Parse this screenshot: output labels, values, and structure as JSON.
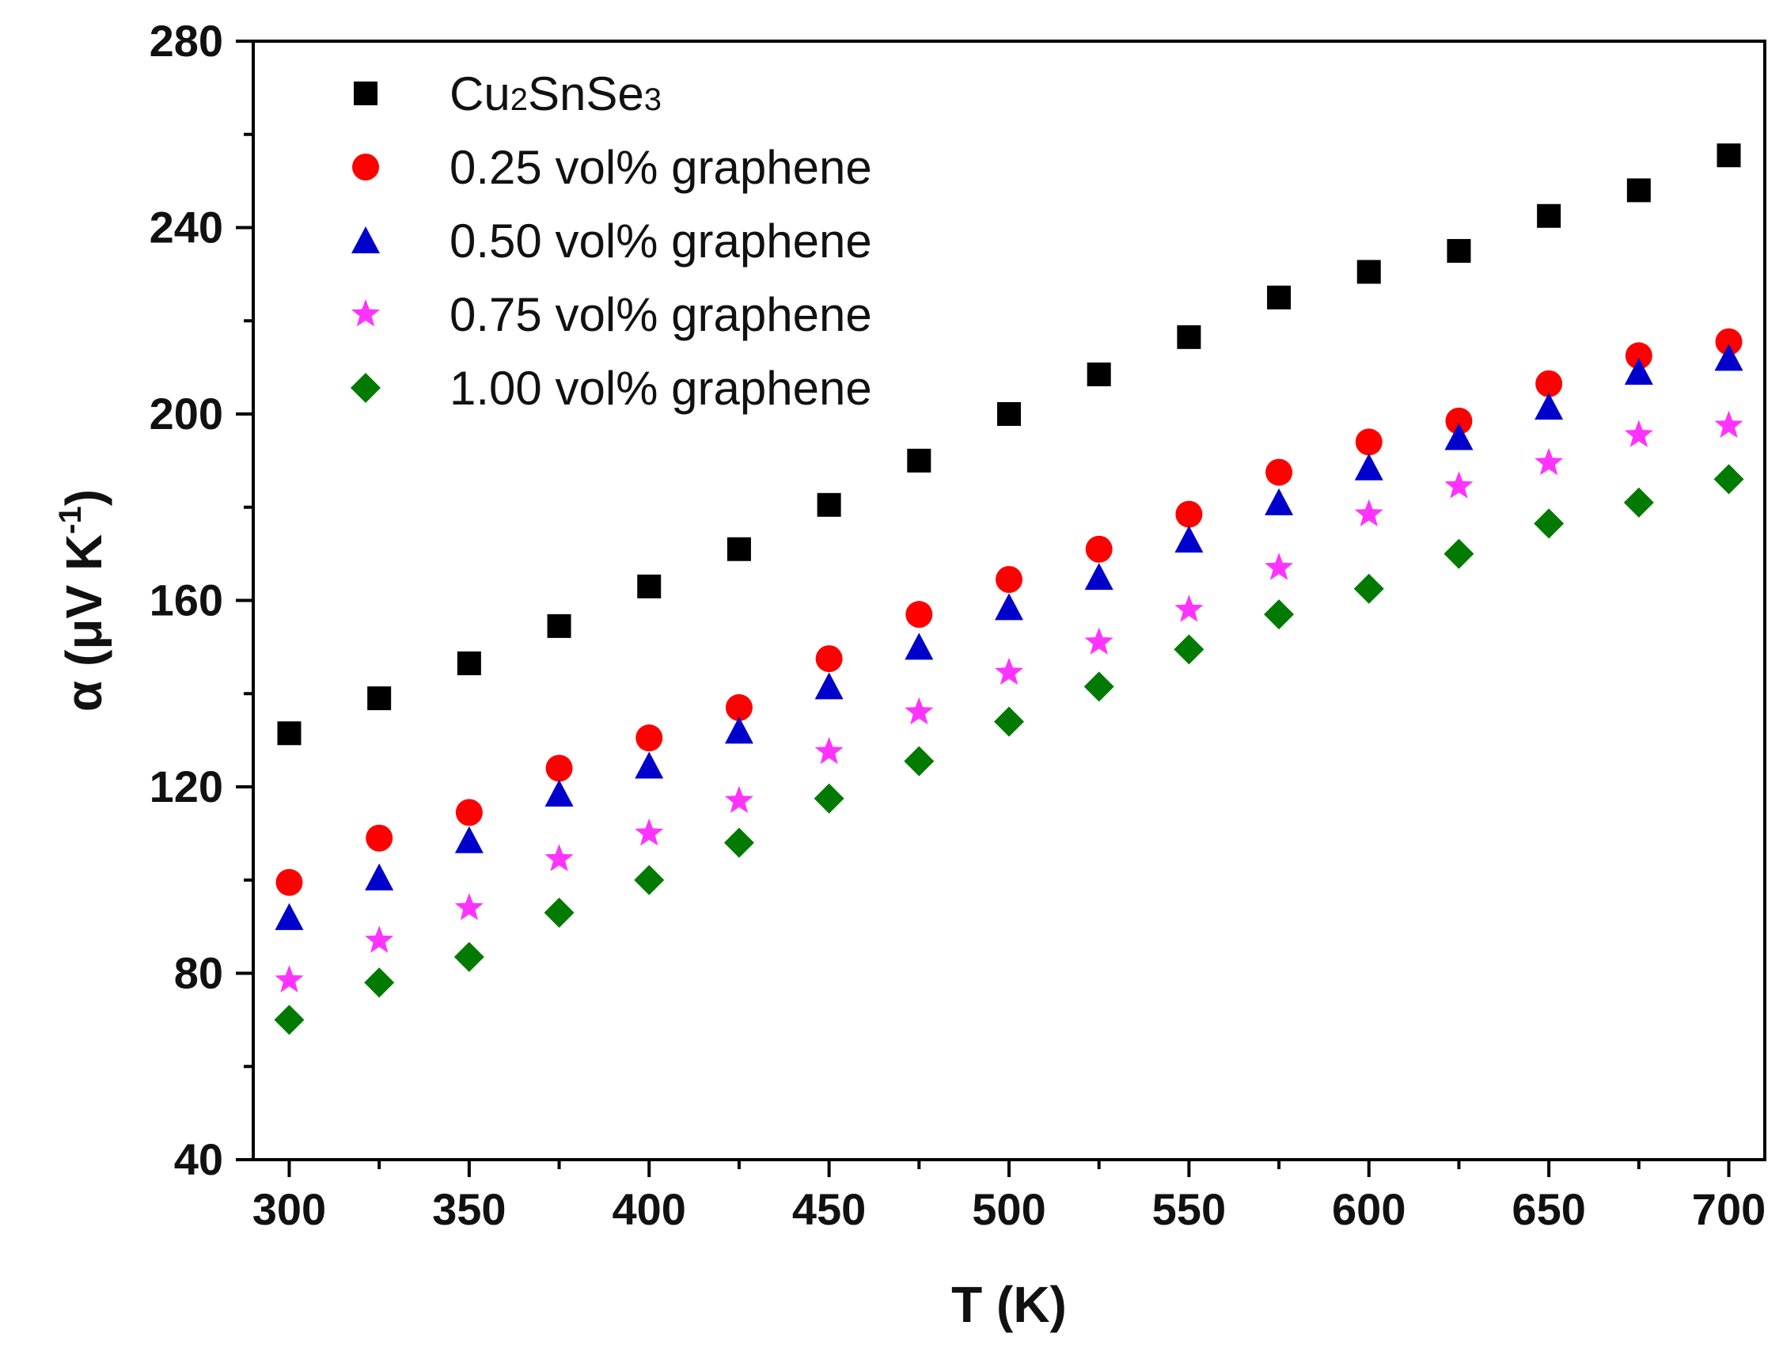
{
  "chart_data": {
    "type": "scatter",
    "title": "",
    "xlabel": "T (K)",
    "ylabel": {
      "base": "α (μV K",
      "superscript": "-1",
      "suffix": ")"
    },
    "xlim": [
      290,
      710
    ],
    "ylim": [
      40,
      280
    ],
    "xticks": [
      300,
      350,
      400,
      450,
      500,
      550,
      600,
      650,
      700
    ],
    "yticks": [
      40,
      80,
      120,
      160,
      200,
      240,
      280
    ],
    "x_minor_step": 25,
    "y_minor_step": 20,
    "legend_position": "top-left",
    "x": [
      300,
      325,
      350,
      375,
      400,
      425,
      450,
      475,
      500,
      525,
      550,
      575,
      600,
      625,
      650,
      675,
      700
    ],
    "series": [
      {
        "name": "Cu2SnSe3",
        "legend_parts": [
          {
            "t": "Cu"
          },
          {
            "t": "2",
            "sub": true
          },
          {
            "t": "SnSe"
          },
          {
            "t": "3",
            "sub": true
          }
        ],
        "marker": "square",
        "color": "#000000",
        "values": [
          131.5,
          139,
          146.5,
          154.5,
          163,
          171,
          180.5,
          190,
          200,
          208.5,
          216.5,
          225,
          230.5,
          235,
          242.5,
          248,
          255.5
        ]
      },
      {
        "name": "0.25 vol% graphene",
        "legend_parts": [
          {
            "t": "0.25 vol% graphene"
          }
        ],
        "marker": "circle",
        "color": "#ff0000",
        "values": [
          99.5,
          109,
          114.5,
          124,
          130.5,
          137,
          147.5,
          157,
          164.5,
          171,
          178.5,
          187.5,
          194,
          198.5,
          206.5,
          212.5,
          215.5
        ]
      },
      {
        "name": "0.50 vol% graphene",
        "legend_parts": [
          {
            "t": "0.50 vol% graphene"
          }
        ],
        "marker": "triangle",
        "color": "#0000cc",
        "values": [
          92,
          100.5,
          108.5,
          118.5,
          124.5,
          132,
          141.5,
          150,
          158.5,
          165,
          173,
          181,
          188.5,
          195,
          201.5,
          209,
          212
        ]
      },
      {
        "name": "0.75 vol% graphene",
        "legend_parts": [
          {
            "t": "0.75 vol% graphene"
          }
        ],
        "marker": "star",
        "color": "#ff33ff",
        "values": [
          78.5,
          87,
          94,
          104.5,
          110,
          117,
          127.5,
          136,
          144.5,
          151,
          158,
          167,
          178.5,
          184.5,
          189.5,
          195.5,
          197.5
        ]
      },
      {
        "name": "1.00 vol% graphene",
        "legend_parts": [
          {
            "t": "1.00 vol% graphene"
          }
        ],
        "marker": "diamond",
        "color": "#007a00",
        "values": [
          70,
          78,
          83.5,
          93,
          100,
          108,
          117.5,
          125.5,
          134,
          141.5,
          149.5,
          157,
          162.5,
          170,
          176.5,
          181,
          186
        ]
      }
    ]
  }
}
